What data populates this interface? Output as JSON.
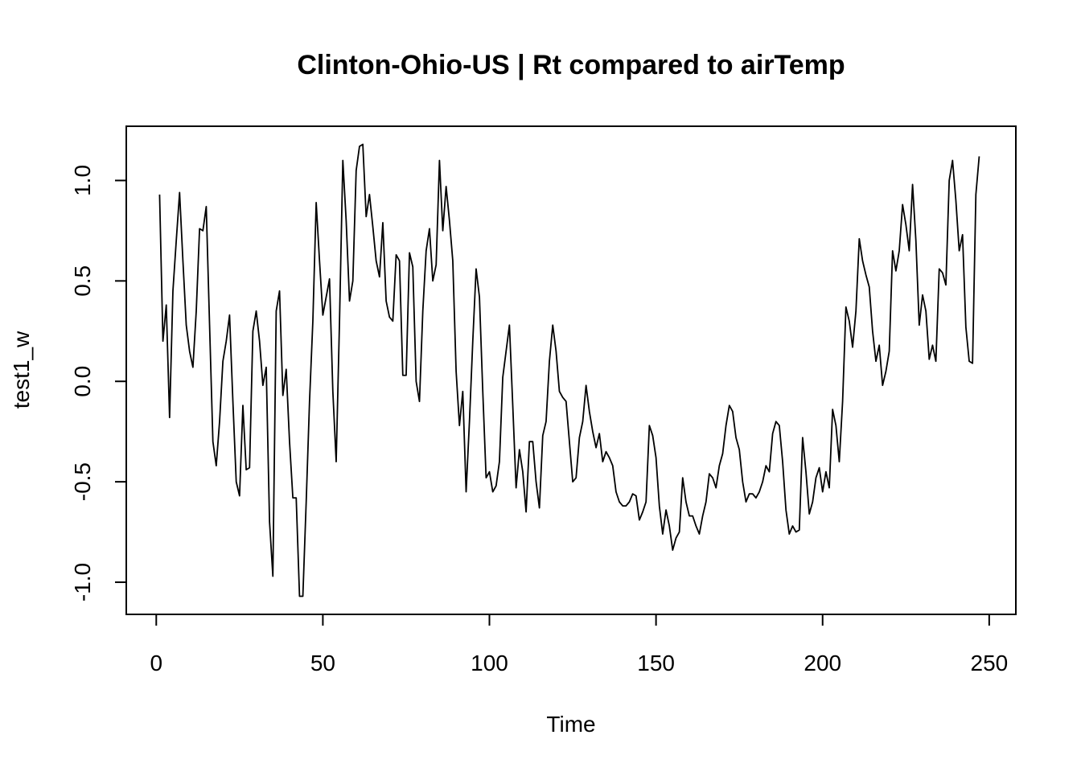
{
  "chart_data": {
    "type": "line",
    "title": "Clinton-Ohio-US | Rt compared to airTemp",
    "xlabel": "Time",
    "ylabel": "test1_w",
    "xlim": [
      -9,
      258
    ],
    "ylim": [
      -1.16,
      1.27
    ],
    "x_ticks": [
      0,
      50,
      100,
      150,
      200,
      250
    ],
    "y_ticks": [
      -1.0,
      -0.5,
      0.0,
      0.5,
      1.0
    ],
    "x_tick_labels": [
      "0",
      "50",
      "100",
      "150",
      "200",
      "250"
    ],
    "y_tick_labels": [
      "-1.0",
      "-0.5",
      "0.0",
      "0.5",
      "1.0"
    ],
    "grid": false,
    "legend": "none",
    "line_color": "#000000",
    "series": [
      {
        "x_start": 1,
        "values": [
          0.93,
          0.2,
          0.38,
          -0.18,
          0.45,
          0.7,
          0.94,
          0.6,
          0.28,
          0.15,
          0.07,
          0.35,
          0.76,
          0.75,
          0.87,
          0.28,
          -0.3,
          -0.42,
          -0.2,
          0.1,
          0.2,
          0.33,
          -0.1,
          -0.5,
          -0.57,
          -0.12,
          -0.44,
          -0.43,
          0.25,
          0.35,
          0.2,
          -0.02,
          0.07,
          -0.7,
          -0.97,
          0.35,
          0.45,
          -0.07,
          0.06,
          -0.3,
          -0.58,
          -0.58,
          -1.07,
          -1.07,
          -0.6,
          -0.1,
          0.3,
          0.89,
          0.6,
          0.33,
          0.42,
          0.51,
          -0.05,
          -0.4,
          0.3,
          1.1,
          0.8,
          0.4,
          0.5,
          1.05,
          1.17,
          1.18,
          0.82,
          0.93,
          0.77,
          0.6,
          0.52,
          0.79,
          0.4,
          0.32,
          0.3,
          0.63,
          0.6,
          0.03,
          0.03,
          0.64,
          0.57,
          0.0,
          -0.1,
          0.35,
          0.65,
          0.76,
          0.5,
          0.58,
          1.1,
          0.75,
          0.97,
          0.8,
          0.6,
          0.05,
          -0.22,
          -0.05,
          -0.55,
          -0.2,
          0.2,
          0.56,
          0.42,
          -0.05,
          -0.48,
          -0.45,
          -0.55,
          -0.52,
          -0.4,
          0.02,
          0.15,
          0.28,
          -0.12,
          -0.53,
          -0.34,
          -0.45,
          -0.65,
          -0.3,
          -0.3,
          -0.5,
          -0.63,
          -0.27,
          -0.2,
          0.1,
          0.28,
          0.15,
          -0.05,
          -0.08,
          -0.1,
          -0.3,
          -0.5,
          -0.48,
          -0.28,
          -0.2,
          -0.02,
          -0.15,
          -0.25,
          -0.33,
          -0.26,
          -0.4,
          -0.35,
          -0.38,
          -0.42,
          -0.55,
          -0.6,
          -0.62,
          -0.62,
          -0.6,
          -0.56,
          -0.57,
          -0.69,
          -0.65,
          -0.6,
          -0.22,
          -0.27,
          -0.38,
          -0.62,
          -0.76,
          -0.64,
          -0.72,
          -0.84,
          -0.78,
          -0.75,
          -0.48,
          -0.6,
          -0.67,
          -0.67,
          -0.72,
          -0.76,
          -0.67,
          -0.6,
          -0.46,
          -0.48,
          -0.53,
          -0.42,
          -0.36,
          -0.22,
          -0.12,
          -0.15,
          -0.28,
          -0.34,
          -0.5,
          -0.6,
          -0.56,
          -0.56,
          -0.58,
          -0.55,
          -0.5,
          -0.42,
          -0.45,
          -0.26,
          -0.2,
          -0.22,
          -0.4,
          -0.64,
          -0.76,
          -0.72,
          -0.75,
          -0.74,
          -0.28,
          -0.45,
          -0.66,
          -0.6,
          -0.48,
          -0.43,
          -0.55,
          -0.45,
          -0.53,
          -0.14,
          -0.22,
          -0.4,
          -0.1,
          0.37,
          0.3,
          0.17,
          0.35,
          0.71,
          0.6,
          0.53,
          0.47,
          0.25,
          0.1,
          0.18,
          -0.02,
          0.05,
          0.15,
          0.65,
          0.55,
          0.65,
          0.88,
          0.78,
          0.65,
          0.98,
          0.7,
          0.28,
          0.43,
          0.35,
          0.11,
          0.18,
          0.1,
          0.56,
          0.54,
          0.48,
          1.0,
          1.1,
          0.9,
          0.65,
          0.73,
          0.27,
          0.1,
          0.09,
          0.93,
          1.12
        ]
      }
    ]
  }
}
